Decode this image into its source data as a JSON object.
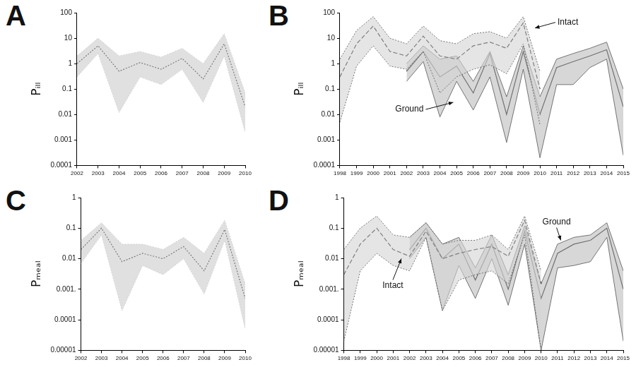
{
  "chart_data": [
    {
      "type": "line",
      "title": "A",
      "y_label": "Pᵢₗₗ",
      "log": "y",
      "grid": false,
      "xlim": [
        2002,
        2010
      ],
      "xticks": [
        2002,
        2003,
        2004,
        2005,
        2006,
        2007,
        2008,
        2009,
        2010
      ],
      "ylim": [
        0.0001,
        100
      ],
      "yticks": [
        0.0001,
        0.001,
        0.01,
        0.1,
        1,
        10,
        100
      ],
      "series": [
        {
          "color": "#cccccc",
          "line_style": "dotted",
          "x": [
            2002,
            2003,
            2004,
            2005,
            2006,
            2007,
            2008,
            2009,
            2010
          ],
          "values": [
            1.0,
            5,
            0.5,
            1.1,
            0.6,
            1.6,
            0.25,
            6,
            0.02
          ],
          "lower": [
            0.3,
            2.5,
            0.012,
            0.3,
            0.15,
            0.6,
            0.03,
            2,
            0.002
          ],
          "upper": [
            2,
            10,
            2,
            3,
            1.8,
            4,
            1,
            15,
            0.07
          ]
        }
      ]
    },
    {
      "type": "line",
      "title": "B",
      "y_label": "Pᵢₗₗ",
      "log": "y",
      "grid": false,
      "xlim": [
        1998,
        2015
      ],
      "xticks": [
        1998,
        1999,
        2000,
        2001,
        2002,
        2003,
        2004,
        2005,
        2006,
        2007,
        2008,
        2009,
        2010,
        2011,
        2012,
        2013,
        2014,
        2015
      ],
      "ylim": [
        0.0001,
        100
      ],
      "yticks": [
        0.0001,
        0.001,
        0.01,
        0.1,
        1,
        10,
        100
      ],
      "series": [
        {
          "color": "#d4d4d4",
          "line_style": "dashed",
          "x": [
            1998,
            1999,
            2000,
            2001,
            2002,
            2003,
            2004,
            2005,
            2006,
            2007,
            2008,
            2009,
            2010
          ],
          "values": [
            0.3,
            6,
            30,
            3,
            2,
            12,
            2,
            1.5,
            5,
            7,
            4,
            40,
            0.1
          ],
          "lower": [
            0.005,
            0.8,
            5,
            0.8,
            0.6,
            3,
            0.07,
            0.3,
            0.6,
            0.9,
            0.4,
            6,
            0.004
          ],
          "upper": [
            1.5,
            20,
            70,
            10,
            6,
            30,
            8,
            6,
            15,
            18,
            10,
            70,
            0.5
          ]
        },
        {
          "color": "#bdbdbd",
          "line_style": "solid",
          "x": [
            2002,
            2003,
            2004,
            2005,
            2006,
            2007,
            2008,
            2009,
            2010,
            2011,
            2012,
            2013,
            2014,
            2015
          ],
          "values": [
            0.5,
            3,
            0.3,
            0.8,
            0.07,
            2.5,
            0.01,
            3,
            0.01,
            0.7,
            1.2,
            2,
            3.5,
            0.02
          ],
          "lower": [
            0.2,
            1.2,
            0.008,
            0.2,
            0.015,
            0.3,
            0.0008,
            0.6,
            0.0002,
            0.15,
            0.15,
            0.7,
            1.5,
            0.00025
          ],
          "upper": [
            1,
            5,
            1.5,
            2,
            0.2,
            3,
            0.05,
            5,
            0.05,
            1.5,
            2.5,
            4,
            7,
            0.1
          ]
        }
      ],
      "annotations": [
        {
          "text": "Intact",
          "x": 2009.7,
          "y": 25
        },
        {
          "text": "Ground",
          "x": 2004.8,
          "y": 0.03
        }
      ]
    },
    {
      "type": "line",
      "title": "C",
      "y_label": "Pₘₑₐₗ",
      "log": "y",
      "grid": false,
      "xlim": [
        2002,
        2010
      ],
      "xticks": [
        2002,
        2003,
        2004,
        2005,
        2006,
        2007,
        2008,
        2009,
        2010
      ],
      "ylim": [
        1e-05,
        1
      ],
      "yticks": [
        1e-05,
        0.0001,
        {
          "value": 0.001,
          "label": "0.001."
        },
        0.01,
        0.1,
        1
      ],
      "series": [
        {
          "color": "#cccccc",
          "line_style": "dotted",
          "x": [
            2002,
            2003,
            2004,
            2005,
            2006,
            2007,
            2008,
            2009,
            2010
          ],
          "values": [
            0.02,
            0.1,
            0.008,
            0.015,
            0.01,
            0.025,
            0.004,
            0.09,
            0.0005
          ],
          "lower": [
            0.007,
            0.06,
            0.0002,
            0.006,
            0.003,
            0.01,
            0.0007,
            0.04,
            5e-05
          ],
          "upper": [
            0.04,
            0.15,
            0.03,
            0.03,
            0.02,
            0.05,
            0.015,
            0.18,
            0.0015
          ]
        }
      ]
    },
    {
      "type": "line",
      "title": "D",
      "y_label": "Pₘₑₐₗ",
      "log": "y",
      "grid": false,
      "xlim": [
        1998,
        2015
      ],
      "xticks": [
        1998,
        1999,
        2000,
        2001,
        2002,
        2003,
        2004,
        2005,
        2006,
        2007,
        2008,
        2009,
        2010,
        2011,
        2012,
        2013,
        2014,
        2015
      ],
      "ylim": [
        1e-05,
        1
      ],
      "yticks": [
        1e-05,
        0.0001,
        {
          "value": 0.001,
          "label": "0.001."
        },
        0.01,
        0.1,
        1
      ],
      "series": [
        {
          "color": "#d4d4d4",
          "line_style": "dashed",
          "x": [
            1998,
            1999,
            2000,
            2001,
            2002,
            2003,
            2004,
            2005,
            2006,
            2007,
            2008,
            2009,
            2010
          ],
          "values": [
            0.003,
            0.03,
            0.1,
            0.02,
            0.012,
            0.08,
            0.01,
            0.015,
            0.02,
            0.025,
            0.012,
            0.18,
            0.0015
          ],
          "lower": [
            2e-05,
            0.004,
            0.015,
            0.006,
            0.004,
            0.05,
            0.0002,
            0.002,
            0.003,
            0.004,
            0.0015,
            0.06,
            1e-05
          ],
          "upper": [
            0.02,
            0.1,
            0.25,
            0.06,
            0.05,
            0.15,
            0.03,
            0.04,
            0.04,
            0.06,
            0.02,
            0.25,
            0.004
          ]
        },
        {
          "color": "#bdbdbd",
          "line_style": "solid",
          "x": [
            2002,
            2003,
            2004,
            2005,
            2006,
            2007,
            2008,
            2009,
            2010,
            2011,
            2012,
            2013,
            2014,
            2015
          ],
          "values": [
            0.02,
            0.1,
            0.01,
            0.03,
            0.002,
            0.03,
            0.001,
            0.08,
            0.0005,
            0.015,
            0.03,
            0.04,
            0.1,
            0.001
          ],
          "lower": [
            0.01,
            0.05,
            0.0002,
            0.006,
            0.0005,
            0.01,
            0.0003,
            0.03,
            1e-05,
            0.005,
            0.006,
            0.008,
            0.05,
            2e-05
          ],
          "upper": [
            0.05,
            0.15,
            0.03,
            0.05,
            0.005,
            0.06,
            0.003,
            0.12,
            0.0015,
            0.03,
            0.05,
            0.06,
            0.15,
            0.004
          ]
        }
      ],
      "annotations": [
        {
          "text": "Intact",
          "x": 2001.5,
          "y": 0.01
        },
        {
          "text": "Ground",
          "x": 2011.2,
          "y": 0.04
        }
      ]
    }
  ]
}
